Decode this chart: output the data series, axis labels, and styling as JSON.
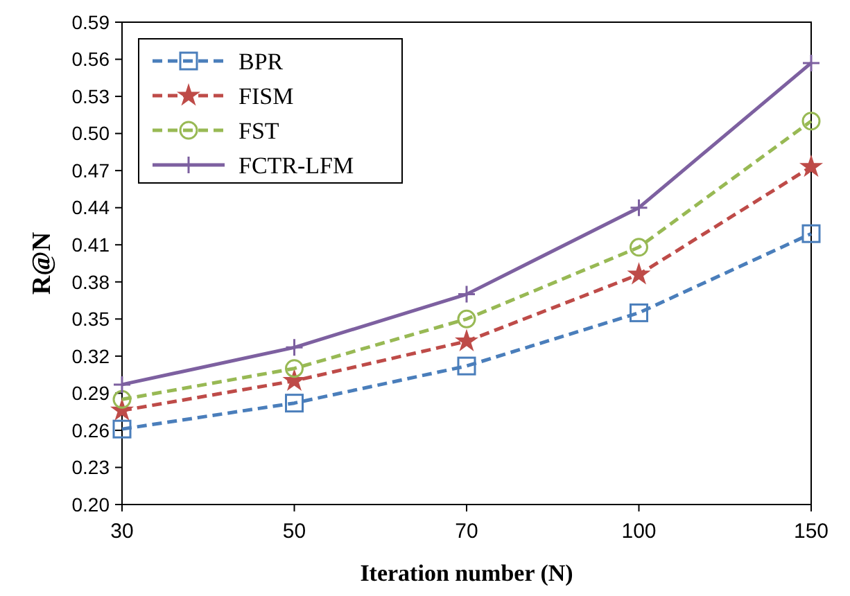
{
  "chart_data": {
    "type": "line",
    "xlabel": "Iteration number (N)",
    "ylabel": "R@N",
    "categories": [
      "30",
      "50",
      "70",
      "100",
      "150"
    ],
    "ylim": [
      0.2,
      0.59
    ],
    "yticks": [
      {
        "value": 0.2,
        "label": "0.20"
      },
      {
        "value": 0.23,
        "label": "0.23"
      },
      {
        "value": 0.26,
        "label": "0.26"
      },
      {
        "value": 0.29,
        "label": "0.29"
      },
      {
        "value": 0.32,
        "label": "0.32"
      },
      {
        "value": 0.35,
        "label": "0.35"
      },
      {
        "value": 0.38,
        "label": "0.38"
      },
      {
        "value": 0.41,
        "label": "0.41"
      },
      {
        "value": 0.44,
        "label": "0.44"
      },
      {
        "value": 0.47,
        "label": "0.47"
      },
      {
        "value": 0.5,
        "label": "0.50"
      },
      {
        "value": 0.53,
        "label": "0.53"
      },
      {
        "value": 0.56,
        "label": "0.56"
      },
      {
        "value": 0.59,
        "label": "0.59"
      }
    ],
    "grid": false,
    "legend": "top left",
    "series": [
      {
        "name": "BPR",
        "color": "#4a7ebb",
        "marker": "square",
        "line_style": "dashed",
        "values": [
          0.261,
          0.282,
          0.312,
          0.355,
          0.419
        ]
      },
      {
        "name": "FISM",
        "color": "#be4b48",
        "marker": "star",
        "line_style": "dashed",
        "values": [
          0.276,
          0.3,
          0.332,
          0.386,
          0.473
        ]
      },
      {
        "name": "FST",
        "color": "#98b954",
        "marker": "circle",
        "line_style": "dashed",
        "values": [
          0.285,
          0.31,
          0.35,
          0.408,
          0.51
        ]
      },
      {
        "name": "FCTR-LFM",
        "color": "#7d60a0",
        "marker": "cross",
        "line_style": "solid",
        "values": [
          0.297,
          0.327,
          0.37,
          0.44,
          0.557
        ]
      }
    ]
  }
}
